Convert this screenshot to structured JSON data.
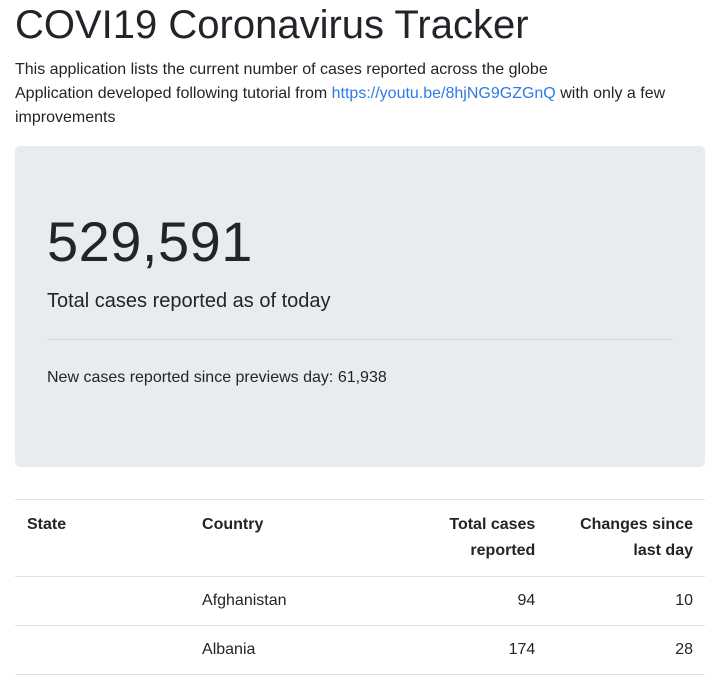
{
  "header": {
    "title": "COVI19 Coronavirus Tracker",
    "description": "This application lists the current number of cases reported across the globe",
    "credit_prefix": "Application developed following tutorial from",
    "credit_link": "https://youtu.be/8hjNG9GZGnQ",
    "credit_suffix": "with only a few improvements"
  },
  "summary": {
    "total_cases": "529,591",
    "total_label": "Total cases reported as of today",
    "new_cases_label": "New cases reported since previews day:",
    "new_cases_value": "61,938"
  },
  "table": {
    "headers": {
      "state": "State",
      "country": "Country",
      "total_line1": "Total cases",
      "total_line2": "reported",
      "change_line1": "Changes since",
      "change_line2": "last day"
    },
    "rows": [
      {
        "state": "",
        "country": "Afghanistan",
        "total": "94",
        "change": "10"
      },
      {
        "state": "",
        "country": "Albania",
        "total": "174",
        "change": "28"
      }
    ]
  }
}
